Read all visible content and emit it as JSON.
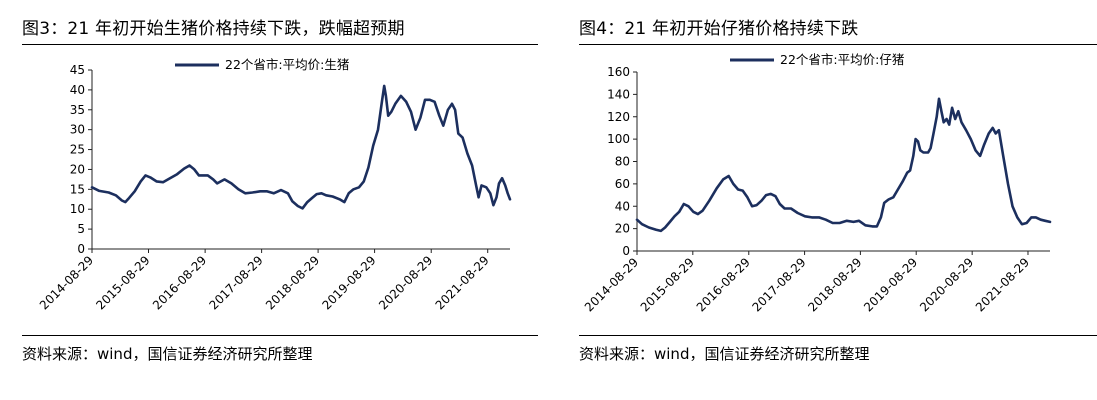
{
  "charts": [
    {
      "figure_title": "图3：21 年初开始生猪价格持续下跌，跌幅超预期",
      "source": "资料来源：wind，国信证券经济研究所整理",
      "line_color": "#1c2f5e",
      "chart_data": {
        "type": "line",
        "legend": "22个省市:平均价:生猪",
        "legend_position": "top-center",
        "grid": false,
        "ylim": [
          0,
          45
        ],
        "yticks": [
          "0",
          "5",
          "10",
          "15",
          "20",
          "25",
          "30",
          "35",
          "40",
          "45"
        ],
        "xlim": [
          "2014-08-29",
          "2022-01-20"
        ],
        "xticks": [
          "2014-08-29",
          "2015-08-29",
          "2016-08-29",
          "2017-08-29",
          "2018-08-29",
          "2019-08-29",
          "2020-08-29",
          "2021-08-29"
        ],
        "series": [
          {
            "name": "22个省市:平均价:生猪",
            "points": [
              [
                "2014-08-29",
                15.5
              ],
              [
                "2014-10-15",
                14.6
              ],
              [
                "2014-12-15",
                14.2
              ],
              [
                "2015-01-30",
                13.5
              ],
              [
                "2015-03-10",
                12.2
              ],
              [
                "2015-04-01",
                11.8
              ],
              [
                "2015-04-25",
                12.8
              ],
              [
                "2015-06-01",
                14.5
              ],
              [
                "2015-07-10",
                17.0
              ],
              [
                "2015-08-10",
                18.5
              ],
              [
                "2015-09-10",
                18.0
              ],
              [
                "2015-10-20",
                17.0
              ],
              [
                "2015-12-01",
                16.8
              ],
              [
                "2016-01-15",
                17.8
              ],
              [
                "2016-03-01",
                18.8
              ],
              [
                "2016-04-15",
                20.2
              ],
              [
                "2016-05-20",
                21.0
              ],
              [
                "2016-06-20",
                20.0
              ],
              [
                "2016-07-20",
                18.5
              ],
              [
                "2016-09-15",
                18.5
              ],
              [
                "2016-10-20",
                17.5
              ],
              [
                "2016-11-15",
                16.5
              ],
              [
                "2017-01-01",
                17.5
              ],
              [
                "2017-02-15",
                16.5
              ],
              [
                "2017-04-01",
                15.0
              ],
              [
                "2017-05-15",
                14.0
              ],
              [
                "2017-07-01",
                14.2
              ],
              [
                "2017-08-20",
                14.5
              ],
              [
                "2017-10-01",
                14.5
              ],
              [
                "2017-11-15",
                14.0
              ],
              [
                "2018-01-01",
                14.8
              ],
              [
                "2018-02-15",
                14.0
              ],
              [
                "2018-03-15",
                12.0
              ],
              [
                "2018-04-20",
                10.8
              ],
              [
                "2018-05-20",
                10.2
              ],
              [
                "2018-06-20",
                11.8
              ],
              [
                "2018-07-20",
                12.8
              ],
              [
                "2018-08-20",
                13.8
              ],
              [
                "2018-09-20",
                14.0
              ],
              [
                "2018-10-20",
                13.5
              ],
              [
                "2018-12-01",
                13.2
              ],
              [
                "2019-01-15",
                12.5
              ],
              [
                "2019-02-15",
                11.8
              ],
              [
                "2019-03-15",
                14.0
              ],
              [
                "2019-04-15",
                15.0
              ],
              [
                "2019-05-20",
                15.5
              ],
              [
                "2019-06-20",
                17.0
              ],
              [
                "2019-07-20",
                20.5
              ],
              [
                "2019-08-20",
                26.0
              ],
              [
                "2019-09-20",
                30.0
              ],
              [
                "2019-10-15",
                37.0
              ],
              [
                "2019-10-30",
                41.0
              ],
              [
                "2019-11-10",
                38.5
              ],
              [
                "2019-11-25",
                33.5
              ],
              [
                "2019-12-15",
                34.5
              ],
              [
                "2020-01-10",
                36.5
              ],
              [
                "2020-02-15",
                38.5
              ],
              [
                "2020-03-20",
                37.0
              ],
              [
                "2020-04-20",
                34.5
              ],
              [
                "2020-05-20",
                30.0
              ],
              [
                "2020-06-20",
                33.0
              ],
              [
                "2020-07-20",
                37.5
              ],
              [
                "2020-08-20",
                37.5
              ],
              [
                "2020-09-20",
                37.0
              ],
              [
                "2020-10-20",
                33.5
              ],
              [
                "2020-11-15",
                31.0
              ],
              [
                "2020-12-15",
                35.0
              ],
              [
                "2021-01-10",
                36.5
              ],
              [
                "2021-01-30",
                35.0
              ],
              [
                "2021-02-20",
                29.0
              ],
              [
                "2021-03-20",
                28.0
              ],
              [
                "2021-04-20",
                24.0
              ],
              [
                "2021-05-20",
                21.0
              ],
              [
                "2021-06-15",
                16.0
              ],
              [
                "2021-07-01",
                13.0
              ],
              [
                "2021-07-20",
                16.0
              ],
              [
                "2021-08-20",
                15.5
              ],
              [
                "2021-09-15",
                14.0
              ],
              [
                "2021-10-05",
                11.0
              ],
              [
                "2021-10-25",
                13.0
              ],
              [
                "2021-11-10",
                16.5
              ],
              [
                "2021-11-30",
                17.8
              ],
              [
                "2021-12-20",
                16.0
              ],
              [
                "2022-01-05",
                14.0
              ],
              [
                "2022-01-20",
                12.5
              ]
            ]
          }
        ]
      }
    },
    {
      "figure_title": "图4：21 年初开始仔猪价格持续下跌",
      "source": "资料来源：wind，国信证券经济研究所整理",
      "line_color": "#1c2f5e",
      "chart_data": {
        "type": "line",
        "legend": "22个省市:平均价:仔猪",
        "legend_position": "top-center",
        "grid": false,
        "ylim": [
          0,
          160
        ],
        "yticks": [
          "0",
          "20",
          "40",
          "60",
          "80",
          "100",
          "120",
          "140",
          "160"
        ],
        "xlim": [
          "2014-08-29",
          "2022-01-20"
        ],
        "xticks": [
          "2014-08-29",
          "2015-08-29",
          "2016-08-29",
          "2017-08-29",
          "2018-08-29",
          "2019-08-29",
          "2020-08-29",
          "2021-08-29"
        ],
        "series": [
          {
            "name": "22个省市:平均价:仔猪",
            "points": [
              [
                "2014-08-29",
                28
              ],
              [
                "2014-10-01",
                24
              ],
              [
                "2014-11-15",
                21
              ],
              [
                "2015-01-01",
                19
              ],
              [
                "2015-02-01",
                18
              ],
              [
                "2015-03-01",
                21
              ],
              [
                "2015-04-01",
                26
              ],
              [
                "2015-05-01",
                31
              ],
              [
                "2015-06-01",
                35
              ],
              [
                "2015-07-01",
                42
              ],
              [
                "2015-08-01",
                40
              ],
              [
                "2015-09-01",
                35
              ],
              [
                "2015-10-01",
                33
              ],
              [
                "2015-11-01",
                36
              ],
              [
                "2015-12-15",
                45
              ],
              [
                "2016-02-01",
                56
              ],
              [
                "2016-03-15",
                64
              ],
              [
                "2016-04-20",
                67
              ],
              [
                "2016-05-20",
                60
              ],
              [
                "2016-06-20",
                55
              ],
              [
                "2016-07-20",
                54
              ],
              [
                "2016-08-20",
                48
              ],
              [
                "2016-09-20",
                40
              ],
              [
                "2016-10-20",
                41
              ],
              [
                "2016-11-20",
                45
              ],
              [
                "2016-12-20",
                50
              ],
              [
                "2017-01-20",
                51
              ],
              [
                "2017-02-20",
                49
              ],
              [
                "2017-03-20",
                42
              ],
              [
                "2017-04-20",
                38
              ],
              [
                "2017-06-01",
                38
              ],
              [
                "2017-07-15",
                34
              ],
              [
                "2017-09-01",
                31
              ],
              [
                "2017-10-15",
                30
              ],
              [
                "2017-12-01",
                30
              ],
              [
                "2018-01-15",
                28
              ],
              [
                "2018-03-01",
                25
              ],
              [
                "2018-04-15",
                25
              ],
              [
                "2018-06-01",
                27
              ],
              [
                "2018-07-15",
                26
              ],
              [
                "2018-08-20",
                27
              ],
              [
                "2018-10-01",
                23
              ],
              [
                "2018-11-15",
                22
              ],
              [
                "2018-12-15",
                22
              ],
              [
                "2019-01-10",
                30
              ],
              [
                "2019-02-01",
                43
              ],
              [
                "2019-03-01",
                46
              ],
              [
                "2019-04-01",
                48
              ],
              [
                "2019-05-01",
                55
              ],
              [
                "2019-06-01",
                62
              ],
              [
                "2019-07-01",
                70
              ],
              [
                "2019-07-20",
                72
              ],
              [
                "2019-08-10",
                85
              ],
              [
                "2019-08-25",
                100
              ],
              [
                "2019-09-10",
                98
              ],
              [
                "2019-09-25",
                90
              ],
              [
                "2019-10-15",
                88
              ],
              [
                "2019-11-15",
                88
              ],
              [
                "2019-12-01",
                92
              ],
              [
                "2019-12-20",
                105
              ],
              [
                "2020-01-10",
                120
              ],
              [
                "2020-01-25",
                136
              ],
              [
                "2020-02-10",
                125
              ],
              [
                "2020-02-25",
                115
              ],
              [
                "2020-03-15",
                118
              ],
              [
                "2020-04-01",
                113
              ],
              [
                "2020-04-20",
                128
              ],
              [
                "2020-05-10",
                118
              ],
              [
                "2020-05-30",
                125
              ],
              [
                "2020-06-20",
                115
              ],
              [
                "2020-07-20",
                108
              ],
              [
                "2020-08-20",
                100
              ],
              [
                "2020-09-20",
                90
              ],
              [
                "2020-10-20",
                85
              ],
              [
                "2020-11-15",
                95
              ],
              [
                "2020-12-15",
                105
              ],
              [
                "2021-01-10",
                110
              ],
              [
                "2021-01-30",
                105
              ],
              [
                "2021-02-20",
                108
              ],
              [
                "2021-03-20",
                85
              ],
              [
                "2021-04-20",
                60
              ],
              [
                "2021-05-20",
                40
              ],
              [
                "2021-06-20",
                30
              ],
              [
                "2021-07-20",
                24
              ],
              [
                "2021-08-20",
                25
              ],
              [
                "2021-09-20",
                30
              ],
              [
                "2021-10-20",
                30
              ],
              [
                "2021-11-20",
                28
              ],
              [
                "2021-12-20",
                27
              ],
              [
                "2022-01-20",
                26
              ]
            ]
          }
        ]
      }
    }
  ]
}
